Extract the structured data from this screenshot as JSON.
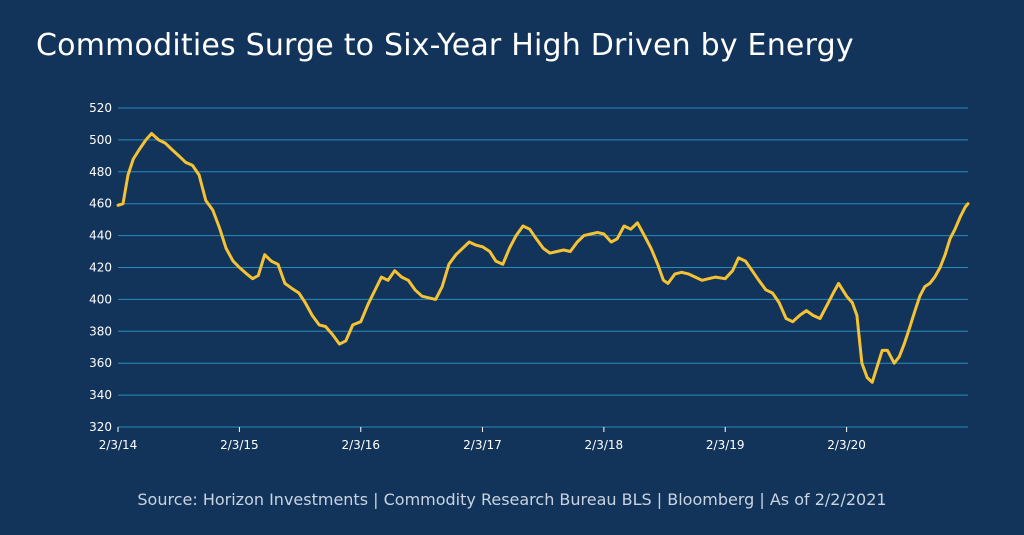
{
  "title": "Commodities Surge to Six-Year High Driven by Energy",
  "source": "Source: Horizon Investments | Commodity Research Bureau BLS | Bloomberg | As of 2/2/2021",
  "colors": {
    "background": "#12345a",
    "line": "#f5c233",
    "grid": "#2b8ab8"
  },
  "chart_data": {
    "type": "line",
    "ylim": [
      320,
      520
    ],
    "yticks": [
      320,
      340,
      360,
      380,
      400,
      420,
      440,
      460,
      480,
      500,
      520
    ],
    "xlim": [
      "2014-02-03",
      "2021-02-02"
    ],
    "xticks": [
      {
        "date": "2014-02-03",
        "label": "2/3/14"
      },
      {
        "date": "2015-02-03",
        "label": "2/3/15"
      },
      {
        "date": "2016-02-03",
        "label": "2/3/16"
      },
      {
        "date": "2017-02-03",
        "label": "2/3/17"
      },
      {
        "date": "2018-02-03",
        "label": "2/3/18"
      },
      {
        "date": "2019-02-03",
        "label": "2/3/19"
      },
      {
        "date": "2020-02-03",
        "label": "2/3/20"
      }
    ],
    "grid": true,
    "series": [
      {
        "points": [
          [
            "2014-02-03",
            459
          ],
          [
            "2014-02-18",
            460
          ],
          [
            "2014-03-05",
            478
          ],
          [
            "2014-03-21",
            488
          ],
          [
            "2014-04-08",
            494
          ],
          [
            "2014-04-28",
            500
          ],
          [
            "2014-05-15",
            504
          ],
          [
            "2014-06-05",
            500
          ],
          [
            "2014-06-25",
            498
          ],
          [
            "2014-07-15",
            494
          ],
          [
            "2014-08-05",
            490
          ],
          [
            "2014-08-25",
            486
          ],
          [
            "2014-09-15",
            484
          ],
          [
            "2014-10-05",
            478
          ],
          [
            "2014-10-25",
            462
          ],
          [
            "2014-11-15",
            456
          ],
          [
            "2014-12-05",
            445
          ],
          [
            "2014-12-25",
            432
          ],
          [
            "2015-01-15",
            424
          ],
          [
            "2015-02-03",
            420
          ],
          [
            "2015-02-25",
            416
          ],
          [
            "2015-03-15",
            413
          ],
          [
            "2015-04-01",
            415
          ],
          [
            "2015-04-20",
            428
          ],
          [
            "2015-05-10",
            424
          ],
          [
            "2015-05-30",
            422
          ],
          [
            "2015-06-20",
            410
          ],
          [
            "2015-07-10",
            407
          ],
          [
            "2015-08-01",
            404
          ],
          [
            "2015-08-20",
            398
          ],
          [
            "2015-09-10",
            390
          ],
          [
            "2015-10-01",
            384
          ],
          [
            "2015-10-20",
            383
          ],
          [
            "2015-11-10",
            378
          ],
          [
            "2015-12-01",
            372
          ],
          [
            "2015-12-20",
            374
          ],
          [
            "2016-01-10",
            384
          ],
          [
            "2016-02-03",
            386
          ],
          [
            "2016-02-25",
            397
          ],
          [
            "2016-03-15",
            405
          ],
          [
            "2016-04-05",
            414
          ],
          [
            "2016-04-25",
            412
          ],
          [
            "2016-05-15",
            418
          ],
          [
            "2016-06-05",
            414
          ],
          [
            "2016-06-25",
            412
          ],
          [
            "2016-07-15",
            406
          ],
          [
            "2016-08-05",
            402
          ],
          [
            "2016-08-25",
            401
          ],
          [
            "2016-09-15",
            400
          ],
          [
            "2016-10-05",
            408
          ],
          [
            "2016-10-25",
            422
          ],
          [
            "2016-11-15",
            428
          ],
          [
            "2016-12-05",
            432
          ],
          [
            "2016-12-25",
            436
          ],
          [
            "2017-01-15",
            434
          ],
          [
            "2017-02-03",
            433
          ],
          [
            "2017-02-25",
            430
          ],
          [
            "2017-03-15",
            424
          ],
          [
            "2017-04-05",
            422
          ],
          [
            "2017-04-25",
            432
          ],
          [
            "2017-05-15",
            440
          ],
          [
            "2017-06-05",
            446
          ],
          [
            "2017-06-25",
            444
          ],
          [
            "2017-07-15",
            438
          ],
          [
            "2017-08-05",
            432
          ],
          [
            "2017-08-25",
            429
          ],
          [
            "2017-09-15",
            430
          ],
          [
            "2017-10-05",
            431
          ],
          [
            "2017-10-25",
            430
          ],
          [
            "2017-11-15",
            436
          ],
          [
            "2017-12-05",
            440
          ],
          [
            "2017-12-25",
            441
          ],
          [
            "2018-01-15",
            442
          ],
          [
            "2018-02-03",
            441
          ],
          [
            "2018-02-25",
            436
          ],
          [
            "2018-03-15",
            438
          ],
          [
            "2018-04-05",
            446
          ],
          [
            "2018-04-25",
            444
          ],
          [
            "2018-05-15",
            448
          ],
          [
            "2018-06-05",
            440
          ],
          [
            "2018-06-25",
            432
          ],
          [
            "2018-07-15",
            422
          ],
          [
            "2018-08-01",
            412
          ],
          [
            "2018-08-15",
            410
          ],
          [
            "2018-09-05",
            416
          ],
          [
            "2018-09-25",
            417
          ],
          [
            "2018-10-15",
            416
          ],
          [
            "2018-11-05",
            414
          ],
          [
            "2018-11-25",
            412
          ],
          [
            "2018-12-15",
            413
          ],
          [
            "2019-01-05",
            414
          ],
          [
            "2019-02-03",
            413
          ],
          [
            "2019-02-25",
            418
          ],
          [
            "2019-03-15",
            426
          ],
          [
            "2019-04-05",
            424
          ],
          [
            "2019-04-25",
            418
          ],
          [
            "2019-05-15",
            412
          ],
          [
            "2019-06-05",
            406
          ],
          [
            "2019-06-25",
            404
          ],
          [
            "2019-07-15",
            398
          ],
          [
            "2019-08-05",
            388
          ],
          [
            "2019-08-25",
            386
          ],
          [
            "2019-09-15",
            390
          ],
          [
            "2019-10-05",
            393
          ],
          [
            "2019-10-25",
            390
          ],
          [
            "2019-11-15",
            388
          ],
          [
            "2019-12-05",
            396
          ],
          [
            "2019-12-25",
            404
          ],
          [
            "2020-01-10",
            410
          ],
          [
            "2020-02-03",
            402
          ],
          [
            "2020-02-20",
            398
          ],
          [
            "2020-03-05",
            390
          ],
          [
            "2020-03-20",
            360
          ],
          [
            "2020-04-05",
            351
          ],
          [
            "2020-04-20",
            348
          ],
          [
            "2020-05-05",
            358
          ],
          [
            "2020-05-20",
            368
          ],
          [
            "2020-06-05",
            368
          ],
          [
            "2020-06-25",
            360
          ],
          [
            "2020-07-10",
            364
          ],
          [
            "2020-07-25",
            372
          ],
          [
            "2020-08-10",
            382
          ],
          [
            "2020-08-25",
            392
          ],
          [
            "2020-09-10",
            402
          ],
          [
            "2020-09-25",
            408
          ],
          [
            "2020-10-10",
            410
          ],
          [
            "2020-10-25",
            414
          ],
          [
            "2020-11-10",
            420
          ],
          [
            "2020-11-25",
            428
          ],
          [
            "2020-12-10",
            438
          ],
          [
            "2020-12-25",
            444
          ],
          [
            "2021-01-10",
            452
          ],
          [
            "2021-01-25",
            458
          ],
          [
            "2021-02-02",
            460
          ]
        ]
      }
    ]
  }
}
